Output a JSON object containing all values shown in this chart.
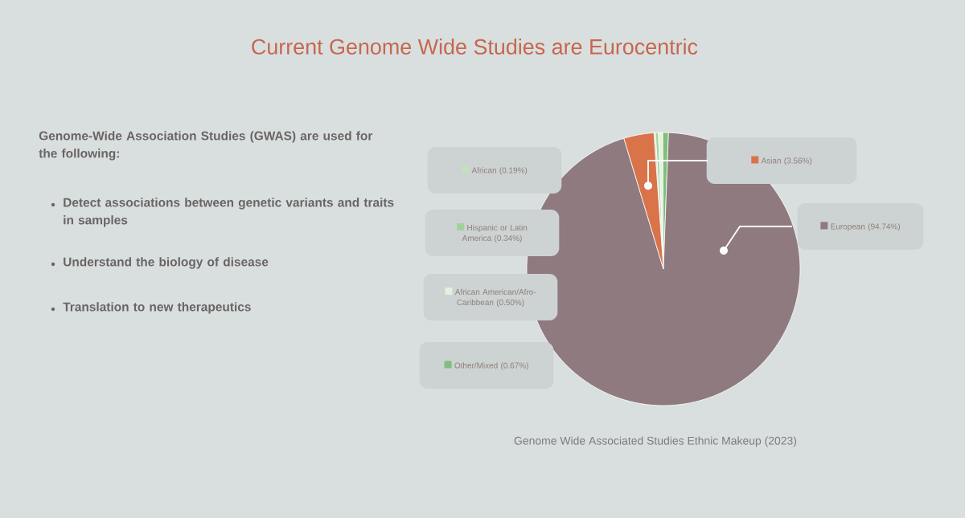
{
  "chart_data": {
    "type": "pie",
    "title": "Current Genome Wide Studies are Eurocentric",
    "categories": [
      "African",
      "Hispanic or Latin America",
      "African American/Afro-Caribbean",
      "Other/Mixed",
      "European",
      "Asian"
    ],
    "values": [
      0.19,
      0.34,
      0.5,
      0.67,
      94.74,
      3.56
    ],
    "value_labels": [
      "(0.19%)",
      "(0.34%)",
      "(0.50%)",
      "(0.67%)",
      "(94.74%)",
      "(3.56%)"
    ],
    "colors": [
      "#c3e2bb",
      "#9fd39a",
      "#e4f0df",
      "#7fbf7a",
      "#8e7a7f",
      "#d9734a"
    ],
    "legend": "left",
    "annotations": [
      "**Genome-Wide Association Studies (GWAS) are used for the following:**",
      "Detect associations between genetic variants and traits in samples",
      "Understand the biology of disease",
      "Translation to new therapeutics",
      "Genome Wide Associated Studies Ethnic Makeup (2023)"
    ]
  }
}
